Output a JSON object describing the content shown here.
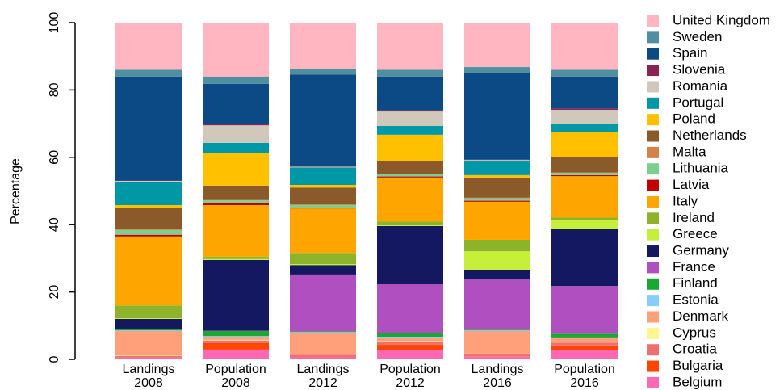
{
  "chart_data": {
    "type": "stacked-bar",
    "y_label": "Percentage",
    "categories": [
      "Landings 2008",
      "Population 2008",
      "Landings 2012",
      "Population 2012",
      "Landings 2016",
      "Population 2016"
    ],
    "ylim": [
      0,
      100
    ],
    "yticks": [
      0,
      20,
      40,
      60,
      80,
      100
    ],
    "series": [
      {
        "name": "United Kingdom",
        "color": "#ffb6c1",
        "values": [
          14,
          16,
          13.8,
          14,
          13.2,
          14
        ]
      },
      {
        "name": "Sweden",
        "color": "#4f8fa0",
        "values": [
          2,
          2.2,
          1.6,
          2,
          1.7,
          2
        ]
      },
      {
        "name": "Spain",
        "color": "#0b4a85",
        "values": [
          30.9,
          11.8,
          27.3,
          10,
          25.8,
          9.5
        ]
      },
      {
        "name": "Slovenia",
        "color": "#8b2252",
        "values": [
          0.1,
          0.5,
          0.1,
          0.4,
          0.1,
          0.4
        ]
      },
      {
        "name": "Romania",
        "color": "#cfc8bb",
        "values": [
          0.2,
          5.2,
          0.2,
          4.3,
          0.2,
          4.1
        ]
      },
      {
        "name": "Portugal",
        "color": "#0097a7",
        "values": [
          7,
          3.1,
          5.2,
          2.6,
          4.3,
          2.4
        ]
      },
      {
        "name": "Poland",
        "color": "#ffc000",
        "values": [
          0.8,
          9.6,
          0.8,
          7.9,
          0.7,
          7.6
        ]
      },
      {
        "name": "Netherlands",
        "color": "#8b5a2b",
        "values": [
          6.3,
          4.3,
          5,
          3.7,
          6,
          4.5
        ]
      },
      {
        "name": "Malta",
        "color": "#d2824a",
        "values": [
          0.3,
          0.1,
          0.2,
          0.1,
          0.2,
          0.1
        ]
      },
      {
        "name": "Lithuania",
        "color": "#7ccf8f",
        "values": [
          1.4,
          0.9,
          0.8,
          0.7,
          0.7,
          0.7
        ]
      },
      {
        "name": "Latvia",
        "color": "#c00000",
        "values": [
          0.5,
          0.5,
          0.2,
          0.3,
          0.3,
          0.3
        ]
      },
      {
        "name": "Italy",
        "color": "#ffa500",
        "values": [
          20.5,
          15.3,
          13.2,
          13.1,
          11.3,
          12.3
        ]
      },
      {
        "name": "Ireland",
        "color": "#8db32b",
        "values": [
          3.8,
          0.7,
          3.3,
          1.1,
          3.4,
          0.8
        ]
      },
      {
        "name": "Greece",
        "color": "#c6ef3a",
        "values": [
          0.2,
          0.3,
          0.3,
          0.2,
          5.7,
          2.5
        ]
      },
      {
        "name": "Germany",
        "color": "#141860",
        "values": [
          3,
          21,
          2.8,
          17.3,
          2.7,
          17
        ]
      },
      {
        "name": "France",
        "color": "#b04fbf",
        "values": [
          0.1,
          0.1,
          16.9,
          14.5,
          14.9,
          14.2
        ]
      },
      {
        "name": "Finland",
        "color": "#1aa834",
        "values": [
          0.3,
          1.5,
          0.2,
          1.1,
          0.2,
          1.1
        ]
      },
      {
        "name": "Estonia",
        "color": "#87cefa",
        "values": [
          0.2,
          0.2,
          0.2,
          0.2,
          0.2,
          0.2
        ]
      },
      {
        "name": "Denmark",
        "color": "#ffa07a",
        "values": [
          7.3,
          0.9,
          6.4,
          1.1,
          6.5,
          1.1
        ]
      },
      {
        "name": "Cyprus",
        "color": "#fff68f",
        "values": [
          0.1,
          0.2,
          0.1,
          0.2,
          0.1,
          0.2
        ]
      },
      {
        "name": "Croatia",
        "color": "#f07070",
        "values": [
          0.5,
          0.8,
          0.8,
          0.9,
          0.9,
          0.9
        ]
      },
      {
        "name": "Bulgaria",
        "color": "#ff4500",
        "values": [
          0,
          1.9,
          0,
          1.5,
          0.1,
          1.4
        ]
      },
      {
        "name": "Belgium",
        "color": "#ff69b4",
        "values": [
          0.5,
          2.9,
          0.6,
          2.8,
          0.8,
          2.7
        ]
      }
    ]
  }
}
